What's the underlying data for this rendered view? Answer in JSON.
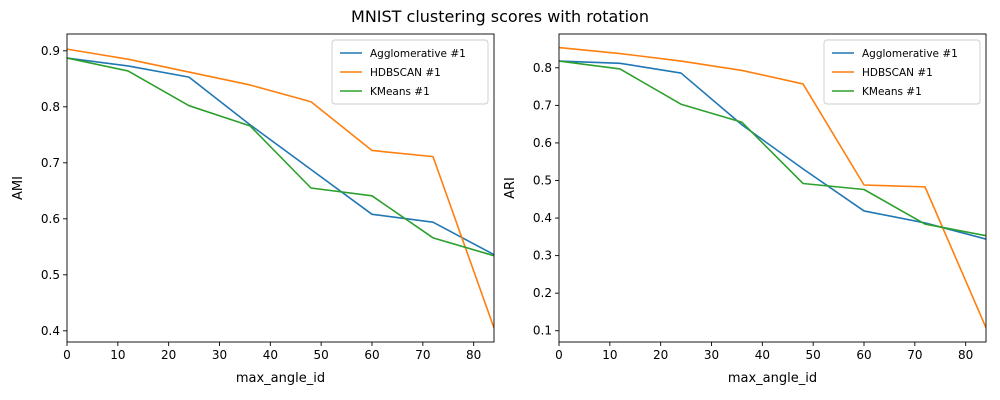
{
  "figure": {
    "title": "MNIST clustering scores with rotation"
  },
  "colors": {
    "Agglomerative #1": "#1f77b4",
    "HDBSCAN #1": "#ff7f0e",
    "KMeans #1": "#2ca02c"
  },
  "chart_data": [
    {
      "type": "line",
      "xlabel": "max_angle_id",
      "ylabel": "AMI",
      "xlim": [
        0,
        84
      ],
      "ylim": [
        0.38,
        0.93
      ],
      "xticks": [
        0,
        10,
        20,
        30,
        40,
        50,
        60,
        70,
        80
      ],
      "yticks": [
        0.4,
        0.5,
        0.6,
        0.7,
        0.8,
        0.9
      ],
      "ytick_labels": [
        "0.4",
        "0.5",
        "0.6",
        "0.7",
        "0.8",
        "0.9"
      ],
      "grid": false,
      "legend": "top-right",
      "x": [
        0,
        12,
        24,
        36,
        48,
        60,
        72,
        84
      ],
      "series": [
        {
          "name": "Agglomerative #1",
          "values": [
            0.887,
            0.873,
            0.853,
            0.768,
            0.688,
            0.608,
            0.594,
            0.536
          ]
        },
        {
          "name": "HDBSCAN #1",
          "values": [
            0.903,
            0.885,
            0.862,
            0.839,
            0.809,
            0.722,
            0.711,
            0.405
          ]
        },
        {
          "name": "KMeans #1",
          "values": [
            0.887,
            0.864,
            0.802,
            0.766,
            0.655,
            0.641,
            0.566,
            0.534
          ]
        }
      ]
    },
    {
      "type": "line",
      "xlabel": "max_angle_id",
      "ylabel": "ARI",
      "xlim": [
        0,
        84
      ],
      "ylim": [
        0.07,
        0.89
      ],
      "xticks": [
        0,
        10,
        20,
        30,
        40,
        50,
        60,
        70,
        80
      ],
      "yticks": [
        0.1,
        0.2,
        0.3,
        0.4,
        0.5,
        0.6,
        0.7,
        0.8
      ],
      "ytick_labels": [
        "0.1",
        "0.2",
        "0.3",
        "0.4",
        "0.5",
        "0.6",
        "0.7",
        "0.8"
      ],
      "grid": false,
      "legend": "top-right",
      "x": [
        0,
        12,
        24,
        36,
        48,
        60,
        72,
        84
      ],
      "series": [
        {
          "name": "Agglomerative #1",
          "values": [
            0.818,
            0.812,
            0.786,
            0.648,
            0.531,
            0.419,
            0.387,
            0.344
          ]
        },
        {
          "name": "HDBSCAN #1",
          "values": [
            0.854,
            0.838,
            0.818,
            0.793,
            0.757,
            0.488,
            0.483,
            0.108
          ]
        },
        {
          "name": "KMeans #1",
          "values": [
            0.818,
            0.797,
            0.703,
            0.655,
            0.492,
            0.476,
            0.384,
            0.353
          ]
        }
      ]
    }
  ]
}
